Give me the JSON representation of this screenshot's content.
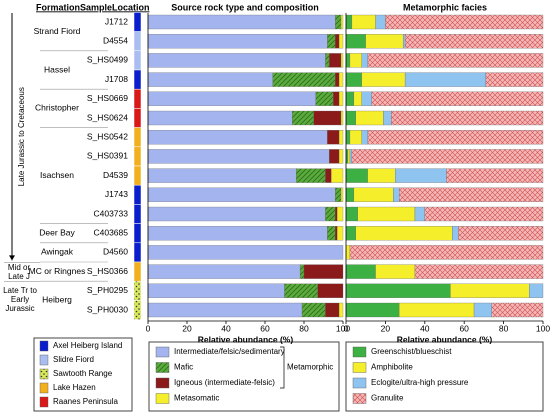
{
  "header": {
    "formation": "Formation",
    "location": "Location"
  },
  "formations": {
    "groups": [
      {
        "label": "Strand Fiord",
        "rows": [
          0,
          1
        ]
      },
      {
        "label": "Hassel",
        "rows": [
          2,
          3
        ]
      },
      {
        "label": "Christopher",
        "rows": [
          4,
          5
        ]
      },
      {
        "label": "Isachsen",
        "rows": [
          6,
          7,
          8,
          9,
          10
        ]
      },
      {
        "label": "Deer Bay",
        "rows": [
          11
        ]
      },
      {
        "label": "Awingak",
        "rows": [
          12
        ]
      },
      {
        "label": "MC or Ringnes",
        "rows": [
          13
        ]
      },
      {
        "label": "Heiberg",
        "rows": [
          14,
          15
        ]
      }
    ]
  },
  "periods": [
    {
      "label": "Late Jurassic to Cretaceous",
      "rows": [
        0,
        1,
        2,
        3,
        4,
        5,
        6,
        7,
        8,
        9,
        10,
        11,
        12
      ]
    },
    {
      "label": "Mid or Late J",
      "rows": [
        13
      ]
    },
    {
      "label": "Late Tr to Early Jurassic",
      "rows": [
        14,
        15
      ]
    }
  ],
  "locations": {
    "items": [
      {
        "name": "Axel Heiberg Island",
        "color": "#0a1ecc"
      },
      {
        "name": "Slidre Fiord",
        "color": "#a9bdf0"
      },
      {
        "name": "Sawtooth Range",
        "color": "#d9e85a",
        "pattern": "dots"
      },
      {
        "name": "Lake Hazen",
        "color": "#f2b01e"
      },
      {
        "name": "Raanes Peninsula",
        "color": "#d91818"
      }
    ],
    "sample_locations": [
      0,
      1,
      1,
      0,
      4,
      4,
      3,
      3,
      3,
      0,
      0,
      0,
      0,
      3,
      2,
      2
    ]
  },
  "chart_data": [
    {
      "type": "stacked-hbar",
      "title": "Source rock type and composition",
      "xlabel": "Relative abundance (%)",
      "category_label": "Sample",
      "categories": [
        "J1712",
        "D4554",
        "S_HS0499",
        "J1708",
        "S_HS0669",
        "S_HS0624",
        "S_HS0542",
        "S_HS0391",
        "D4539",
        "J1743",
        "C403733",
        "C403685",
        "D4560",
        "S_HS0366",
        "S_PH0295",
        "S_PH0030"
      ],
      "highlighted_categories": [
        7
      ],
      "highlight_color": "#2a9a2a",
      "xlim": [
        0,
        100
      ],
      "xticks": [
        0,
        20,
        40,
        60,
        80,
        100
      ],
      "series": [
        {
          "name": "Intermediate/felsic/sedimentary",
          "color": "#a4b4ee",
          "values": [
            96,
            92,
            91,
            64,
            86,
            74,
            92,
            93,
            76,
            96,
            91,
            92,
            100,
            78,
            70,
            79
          ]
        },
        {
          "name": "Mafic",
          "color": "#5aaa3c",
          "pattern": "hatch",
          "values": [
            3,
            4,
            2,
            32,
            9,
            11,
            0,
            0,
            15,
            3,
            5,
            4,
            0,
            2,
            17,
            12
          ]
        },
        {
          "name": "Igneous (intermediate-felsic)",
          "color": "#8b1a1a",
          "values": [
            0,
            2,
            6,
            2,
            3,
            14,
            6,
            5,
            3,
            0,
            1,
            1,
            0,
            20,
            13,
            7
          ]
        },
        {
          "name": "Metasomatic",
          "color": "#f5ee2a",
          "values": [
            1,
            2,
            1,
            2,
            2,
            1,
            2,
            2,
            6,
            1,
            3,
            3,
            0,
            0,
            0,
            2
          ]
        }
      ],
      "legend_group": {
        "label": "Metamorphic",
        "series": [
          0,
          1,
          2
        ]
      }
    },
    {
      "type": "stacked-hbar",
      "title": "Metamorphic facies",
      "xlabel": "Relative abundance (%)",
      "xlim": [
        0,
        100
      ],
      "xticks": [
        0,
        20,
        40,
        60,
        80,
        100
      ],
      "series": [
        {
          "name": "Greenschist/blueschist",
          "color": "#3cb043",
          "values": [
            3,
            10,
            2,
            8,
            4,
            5,
            2,
            1,
            11,
            4,
            6,
            5,
            0,
            15,
            53,
            27
          ]
        },
        {
          "name": "Amphibolite",
          "color": "#f5ee2a",
          "values": [
            12,
            19,
            6,
            22,
            4,
            14,
            6,
            1,
            14,
            20,
            29,
            49,
            2,
            20,
            40,
            38
          ]
        },
        {
          "name": "Eclogite/ultra-high pressure",
          "color": "#8fc3f0",
          "values": [
            5,
            1,
            3,
            41,
            5,
            4,
            3,
            1,
            26,
            3,
            5,
            3,
            0,
            0,
            7,
            9
          ]
        },
        {
          "name": "Granulite",
          "color": "#f4b6b6",
          "pattern": "cross",
          "values": [
            80,
            70,
            89,
            29,
            87,
            77,
            89,
            97,
            49,
            73,
            60,
            43,
            98,
            65,
            0,
            26
          ]
        }
      ]
    }
  ]
}
